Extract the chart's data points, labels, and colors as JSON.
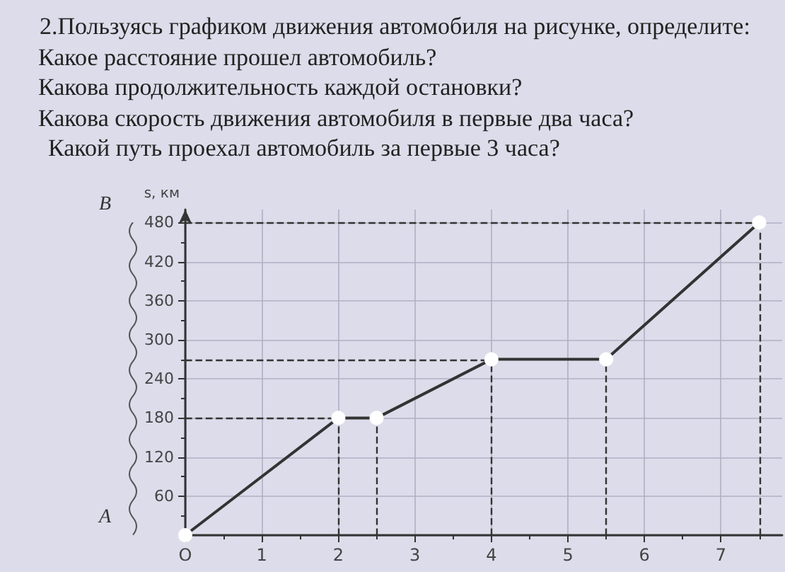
{
  "chart_data": {
    "type": "line",
    "title": "2.Пользуясь графиком  движения автомобиля на рисунке, определите:",
    "annotations": [
      "Какое расстояние прошел автомобиль?",
      "Какова продолжительность каждой остановки?",
      "Какова скорость движения автомобиля в первые два часа?",
      "Какой путь проехал автомобиль за первые 3 часа?",
      "A",
      "B"
    ],
    "ylabel": "s, км",
    "x": [
      0,
      2,
      2.5,
      4,
      5.5,
      7.5
    ],
    "series": [
      {
        "color": "#333333",
        "values": [
          0,
          180,
          180,
          270,
          270,
          480
        ]
      }
    ],
    "marker": "circle",
    "xlim": [
      0,
      7.8
    ],
    "ylim": [
      0,
      500
    ],
    "xticks": [
      {
        "value": 0,
        "label": "O"
      },
      1,
      2,
      3,
      4,
      5,
      6,
      7
    ],
    "yticks": [
      {
        "value": 0,
        "label": null
      },
      60,
      120,
      180,
      240,
      300,
      360,
      420,
      480
    ],
    "ref_lines": [
      {
        "axis": "y",
        "value": 180,
        "line_style": "dashed"
      },
      {
        "axis": "y",
        "value": 270,
        "line_style": "dashed"
      },
      {
        "axis": "y",
        "value": 480,
        "line_style": "dashed"
      },
      {
        "axis": "x",
        "value": 2,
        "line_style": "dashed"
      },
      {
        "axis": "x",
        "value": 2.5,
        "line_style": "dashed"
      },
      {
        "axis": "x",
        "value": 4,
        "line_style": "dashed"
      },
      {
        "axis": "x",
        "value": 5.5,
        "line_style": "dashed"
      },
      {
        "axis": "x",
        "value": 7.5,
        "line_style": "dashed"
      }
    ],
    "grid": true
  }
}
